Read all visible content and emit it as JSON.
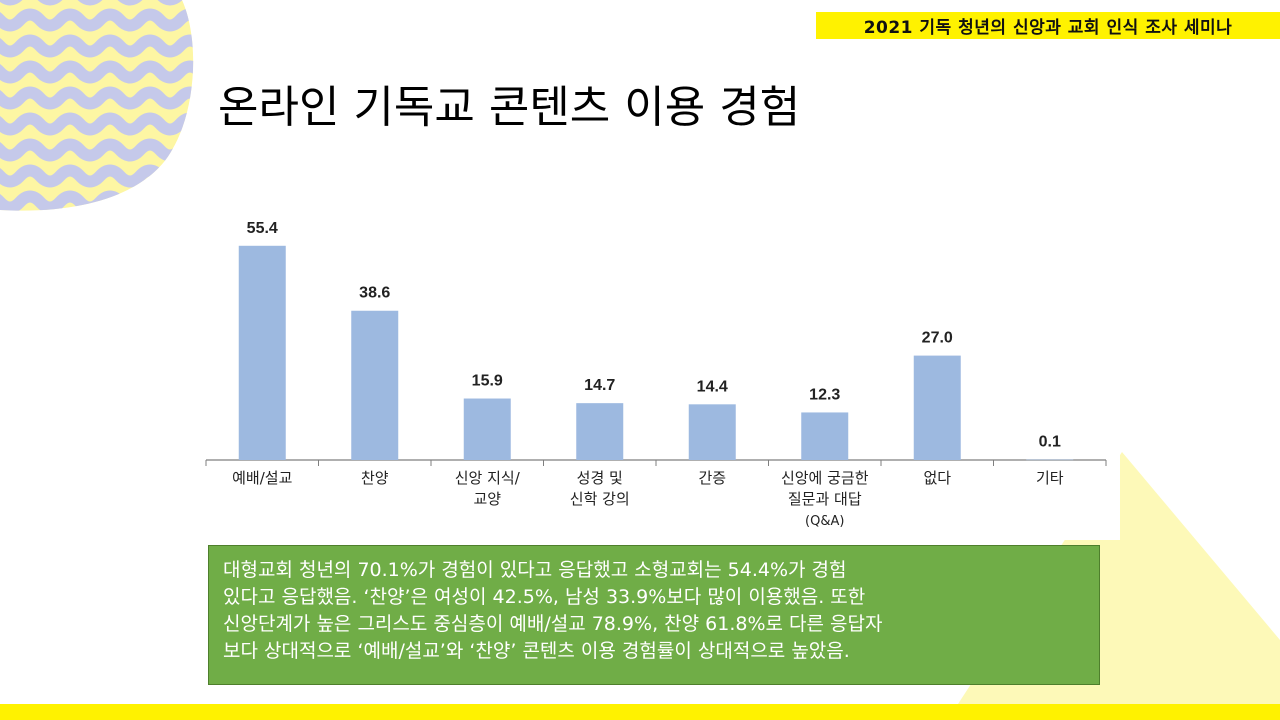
{
  "header": {
    "banner_text": "2021 기독 청년의 신앙과 교회 인식 조사 세미나"
  },
  "page": {
    "title": "온라인 기독교 콘텐츠 이용 경험"
  },
  "colors": {
    "banner": "#fff200",
    "bar": "#9db9e0",
    "summary_bg": "#70ad47",
    "deco_wave": "#c5c9ea",
    "deco_yellow": "#fdf6a3",
    "triangle": "#fdf9b8",
    "bottom_bar": "#fff200"
  },
  "chart_data": {
    "type": "bar",
    "title": "",
    "xlabel": "",
    "ylabel": "",
    "ylim": [
      0,
      60
    ],
    "grid": false,
    "categories": [
      [
        "예배/설교"
      ],
      [
        "찬양"
      ],
      [
        "신앙 지식/",
        "교양"
      ],
      [
        "성경 및",
        "신학 강의"
      ],
      [
        "간증"
      ],
      [
        "신앙에 궁금한",
        "질문과 대답",
        "(Q&A)"
      ],
      [
        "없다"
      ],
      [
        "기타"
      ]
    ],
    "values": [
      55.4,
      38.6,
      15.9,
      14.7,
      14.4,
      12.3,
      27.0,
      0.1
    ],
    "value_labels": [
      "55.4",
      "38.6",
      "15.9",
      "14.7",
      "14.4",
      "12.3",
      "27.0",
      "0.1"
    ]
  },
  "summary": {
    "lines": [
      "대형교회 청년의 70.1%가 경험이 있다고 응답했고 소형교회는 54.4%가 경험",
      "있다고 응답했음. ‘찬양’은 여성이 42.5%, 남성 33.9%보다 많이 이용했음. 또한",
      "신앙단계가 높은 그리스도 중심층이 예배/설교 78.9%, 찬양 61.8%로 다른 응답자",
      "보다 상대적으로 ‘예배/설교’와 ‘찬양’ 콘텐츠 이용 경험률이 상대적으로  높았음."
    ]
  }
}
